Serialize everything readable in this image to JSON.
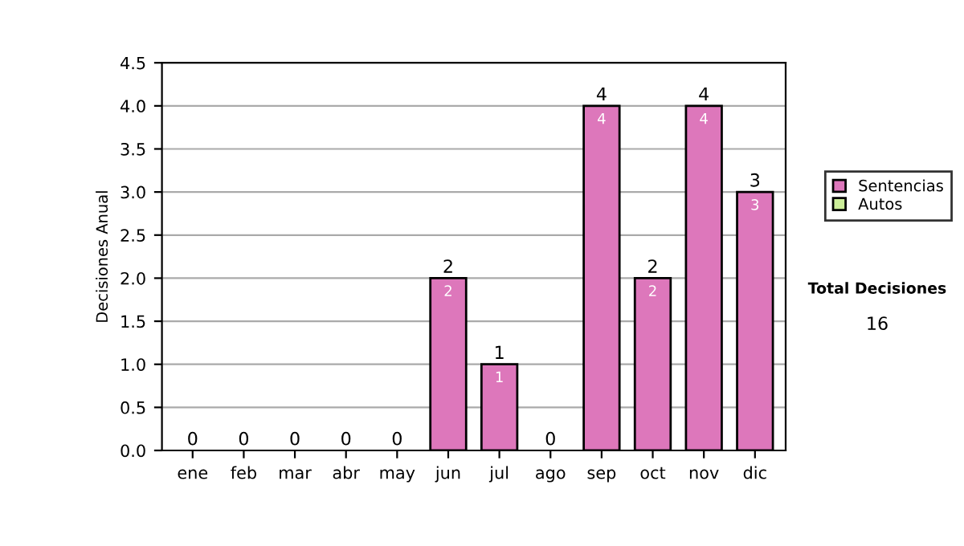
{
  "chart_data": {
    "type": "bar",
    "stacked": true,
    "ylabel": "Decisiones Anual",
    "categories": [
      "ene",
      "feb",
      "mar",
      "abr",
      "may",
      "jun",
      "jul",
      "ago",
      "sep",
      "oct",
      "nov",
      "dic"
    ],
    "series": [
      {
        "name": "Sentencias",
        "color": "#dd77bb",
        "values": [
          0,
          0,
          0,
          0,
          0,
          2,
          1,
          0,
          4,
          2,
          4,
          3
        ],
        "value_labels": [
          null,
          null,
          null,
          null,
          null,
          "2",
          "1",
          null,
          "4",
          "2",
          "4",
          "3"
        ]
      },
      {
        "name": "Autos",
        "color": "#ccee99",
        "values": [
          0,
          0,
          0,
          0,
          0,
          0,
          0,
          0,
          0,
          0,
          0,
          0
        ]
      }
    ],
    "totals": [
      "0",
      "0",
      "0",
      "0",
      "0",
      "2",
      "1",
      "0",
      "4",
      "2",
      "4",
      "3"
    ],
    "ylim": [
      0,
      4.5
    ],
    "yticks": [
      {
        "value": 0,
        "label": "0.0"
      },
      {
        "value": 0.5,
        "label": "0.5"
      },
      {
        "value": 1,
        "label": "1.0"
      },
      {
        "value": 1.5,
        "label": "1.5"
      },
      {
        "value": 2,
        "label": "2.0"
      },
      {
        "value": 2.5,
        "label": "2.5"
      },
      {
        "value": 3,
        "label": "3.0"
      },
      {
        "value": 3.5,
        "label": "3.5"
      },
      {
        "value": 4,
        "label": "4.0"
      },
      {
        "value": 4.5,
        "label": "4.5"
      }
    ],
    "grid": "y",
    "legend": "right",
    "annotations": [
      "Total Decisiones",
      "16"
    ]
  }
}
